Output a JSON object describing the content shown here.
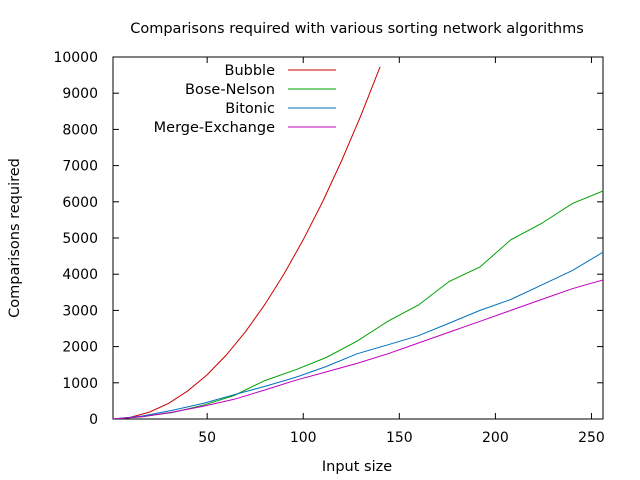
{
  "chart_data": {
    "type": "line",
    "title": "Comparisons required with various sorting network algorithms",
    "xlabel": "Input size",
    "ylabel": "Comparisons required",
    "xlim": [
      1,
      256
    ],
    "ylim": [
      0,
      10000
    ],
    "xticks": [
      50,
      100,
      150,
      200,
      250
    ],
    "yticks": [
      0,
      1000,
      2000,
      3000,
      4000,
      5000,
      6000,
      7000,
      8000,
      9000,
      10000
    ],
    "grid": false,
    "legend_position": "top-left",
    "series": [
      {
        "name": "Bubble",
        "color": "#cc0000",
        "x": [
          1,
          10,
          20,
          30,
          40,
          50,
          60,
          70,
          80,
          90,
          100,
          110,
          120,
          130,
          140
        ],
        "y": [
          0,
          45,
          190,
          435,
          780,
          1225,
          1770,
          2415,
          3160,
          4005,
          4950,
          5995,
          7140,
          8385,
          9730
        ]
      },
      {
        "name": "Bose-Nelson",
        "color": "#00a000",
        "x": [
          1,
          16,
          32,
          48,
          64,
          80,
          96,
          112,
          128,
          144,
          160,
          176,
          192,
          208,
          224,
          240,
          256
        ],
        "y": [
          0,
          60,
          180,
          380,
          650,
          1060,
          1360,
          1700,
          2150,
          2700,
          3150,
          3800,
          4200,
          4950,
          5400,
          5950,
          6300
        ]
      },
      {
        "name": "Bitonic",
        "color": "#0070c0",
        "x": [
          1,
          16,
          32,
          48,
          64,
          80,
          96,
          112,
          128,
          144,
          160,
          176,
          192,
          208,
          224,
          240,
          256
        ],
        "y": [
          0,
          80,
          240,
          430,
          672,
          900,
          1150,
          1450,
          1800,
          2050,
          2300,
          2650,
          3000,
          3300,
          3700,
          4100,
          4608
        ]
      },
      {
        "name": "Merge-Exchange",
        "color": "#c000c0",
        "x": [
          1,
          16,
          32,
          48,
          64,
          80,
          96,
          112,
          128,
          144,
          160,
          176,
          192,
          208,
          224,
          240,
          256
        ],
        "y": [
          0,
          63,
          191,
          350,
          543,
          800,
          1070,
          1300,
          1536,
          1800,
          2100,
          2400,
          2700,
          3000,
          3300,
          3600,
          3839
        ]
      }
    ]
  }
}
